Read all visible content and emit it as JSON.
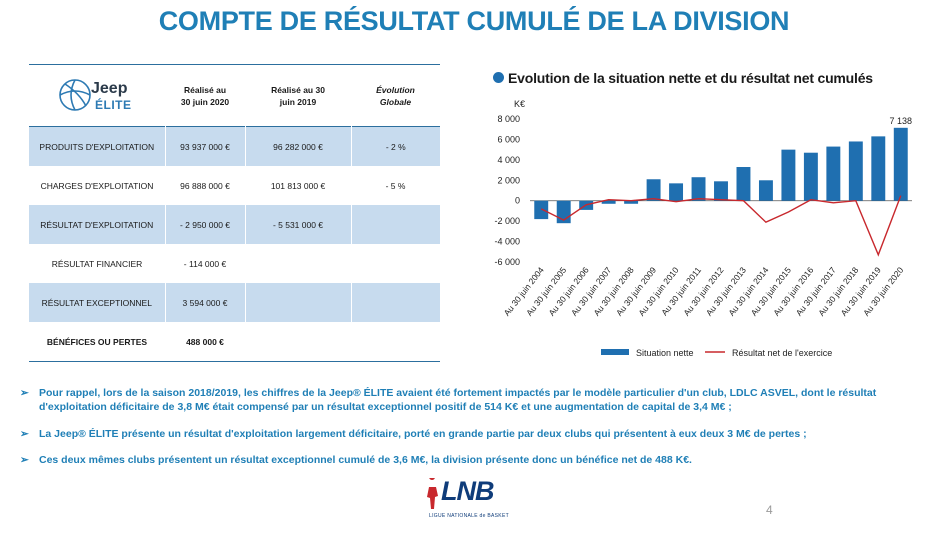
{
  "title": "COMPTE DE RÉSULTAT CUMULÉ DE LA DIVISION",
  "logo": {
    "brand": "Jeep",
    "sub": "ÉLITE"
  },
  "table": {
    "headers": [
      "Réalisé au 30 juin 2020",
      "Réalisé au 30 juin 2019",
      "Évolution Globale"
    ],
    "rows": [
      {
        "label": "PRODUITS D'EXPLOITATION",
        "v2020": "93 937 000 €",
        "v2019": "96 282 000 €",
        "evol": "- 2 %"
      },
      {
        "label": "CHARGES D'EXPLOITATION",
        "v2020": "96 888 000 €",
        "v2019": "101 813 000 €",
        "evol": "- 5 %"
      },
      {
        "label": "RÉSULTAT D'EXPLOITATION",
        "v2020": "- 2 950 000 €",
        "v2019": "- 5 531 000 €",
        "evol": ""
      },
      {
        "label": "RÉSULTAT FINANCIER",
        "v2020": "- 114 000 €",
        "v2019": "",
        "evol": ""
      },
      {
        "label": "RÉSULTAT EXCEPTIONNEL",
        "v2020": "3 594 000 €",
        "v2019": "",
        "evol": ""
      },
      {
        "label": "BÉNÉFICES OU PERTES",
        "v2020": "488 000 €",
        "v2019": "",
        "evol": ""
      }
    ]
  },
  "chart_data": {
    "type": "bar",
    "title": "Evolution de la situation nette et du résultat net cumulés",
    "ylabel": "K€",
    "ylim": [
      -6000,
      8000
    ],
    "yticks": [
      "8 000",
      "6 000",
      "4 000",
      "2 000",
      "0",
      "-2 000",
      "-4 000",
      "-6 000"
    ],
    "categories": [
      "Au 30 juin 2004",
      "Au 30 juin 2005",
      "Au 30 juin 2006",
      "Au 30 juin 2007",
      "Au 30 juin 2008",
      "Au 30 juin 2009",
      "Au 30 juin 2010",
      "Au 30 juin 2011",
      "Au 30 juin 2012",
      "Au 30 juin 2013",
      "Au 30 juin 2014",
      "Au 30 juin 2015",
      "Au 30 juin 2016",
      "Au 30 juin 2017",
      "Au 30 juin 2018",
      "Au 30 juin 2019",
      "Au 30 juin 2020"
    ],
    "series": [
      {
        "name": "Situation nette",
        "type": "bar",
        "color": "#1f6fb0",
        "values": [
          -1800,
          -2200,
          -900,
          -300,
          -300,
          2100,
          1700,
          2300,
          1900,
          3300,
          2000,
          5000,
          4700,
          5300,
          5800,
          6300,
          7138
        ]
      },
      {
        "name": "Résultat net de l'exercice",
        "type": "line",
        "color": "#c8282d",
        "values": [
          -800,
          -1900,
          -400,
          100,
          0,
          200,
          -100,
          200,
          100,
          0,
          -2100,
          -1100,
          100,
          -200,
          0,
          -5300,
          500
        ]
      }
    ],
    "annotation": "7 138"
  },
  "bullets": [
    "Pour rappel, lors de la saison 2018/2019, les chiffres de la Jeep® ÉLITE avaient été fortement impactés par le modèle particulier d'un club, LDLC ASVEL, dont le résultat d'exploitation déficitaire de 3,8 M€ était compensé par un résultat exceptionnel positif de 514 K€ et une augmentation de capital de 3,4 M€ ;",
    "La Jeep® ÉLITE présente un résultat d'exploitation largement déficitaire, porté en grande partie par deux clubs qui présentent à eux deux 3 M€ de pertes ;",
    "Ces deux mêmes clubs présentent un résultat exceptionnel cumulé de 3,6 M€, la division présente donc un bénéfice net de 488 K€."
  ],
  "footer": {
    "logo": "LNB",
    "logo_sub": "LIGUE NATIONALE de BASKET",
    "page": "4"
  }
}
